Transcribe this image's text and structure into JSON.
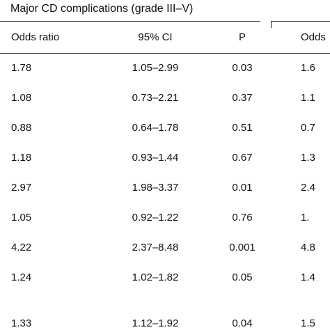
{
  "group_header": "Major CD complications (grade III–V)",
  "columns": {
    "odds_ratio": "Odds ratio",
    "ci": "95% CI",
    "p": "P",
    "odds_ratio_2": "Odds"
  },
  "rows": [
    {
      "or": "1.78",
      "ci": "1.05–2.99",
      "p": "0.03",
      "or2": "1.6"
    },
    {
      "or": "1.08",
      "ci": "0.73–2.21",
      "p": "0.37",
      "or2": "1.1"
    },
    {
      "or": "0.88",
      "ci": "0.64–1.78",
      "p": "0.51",
      "or2": "0.7"
    },
    {
      "or": "1.18",
      "ci": "0.93–1.44",
      "p": "0.67",
      "or2": "1.3"
    },
    {
      "or": "2.97",
      "ci": "1.98–3.37",
      "p": "0.01",
      "or2": "2.4"
    },
    {
      "or": "1.05",
      "ci": "0.92–1.22",
      "p": "0.76",
      "or2": "1."
    },
    {
      "or": "4.22",
      "ci": "2.37–8.48",
      "p": "0.001",
      "or2": "4.8"
    },
    {
      "or": "1.24",
      "ci": "1.02–1.82",
      "p": "0.05",
      "or2": "1.4"
    },
    {
      "or": "1.33",
      "ci": "1.12–1.92",
      "p": "0.04",
      "or2": "1.5"
    }
  ]
}
